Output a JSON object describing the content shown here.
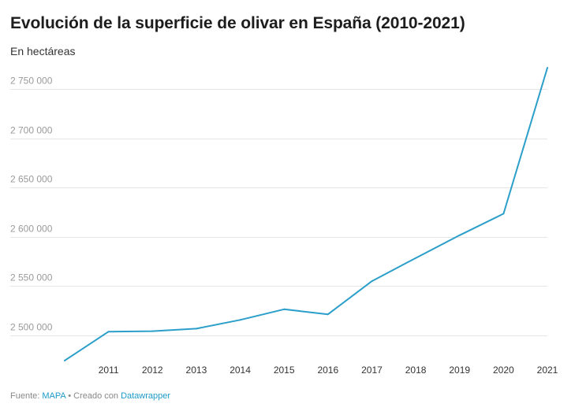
{
  "header": {
    "title": "Evolución de la superficie de olivar en España (2010-2021)",
    "subtitle": "En hectáreas"
  },
  "footer": {
    "source_label": "Fuente:",
    "source_name": "MAPA",
    "separator": "•",
    "created_label": "Creado con",
    "tool_name": "Datawrapper"
  },
  "colors": {
    "line": "#2b9fc9",
    "grid": "#e5e5e5",
    "link": "#1d9ac8"
  },
  "chart_data": {
    "type": "line",
    "title": "Evolución de la superficie de olivar en España (2010-2021)",
    "subtitle": "En hectáreas",
    "xlabel": "",
    "ylabel": "",
    "x": [
      2010,
      2011,
      2012,
      2013,
      2014,
      2015,
      2016,
      2017,
      2018,
      2019,
      2020,
      2021
    ],
    "series": [
      {
        "values": [
          2474500,
          2503800,
          2504300,
          2506900,
          2515700,
          2526500,
          2521400,
          2555000,
          2578500,
          2601600,
          2623500,
          2771500
        ]
      }
    ],
    "ylim": [
      2475000,
      2775000
    ],
    "yticks": [
      2500000,
      2550000,
      2600000,
      2650000,
      2700000,
      2750000
    ],
    "ytick_labels": [
      "2 500 000",
      "2 550 000",
      "2 600 000",
      "2 650 000",
      "2 700 000",
      "2 750 000"
    ],
    "xtick_labels": [
      "2011",
      "2012",
      "2013",
      "2014",
      "2015",
      "2016",
      "2017",
      "2018",
      "2019",
      "2020",
      "2021"
    ],
    "grid": "horizontal",
    "legend": "none"
  }
}
